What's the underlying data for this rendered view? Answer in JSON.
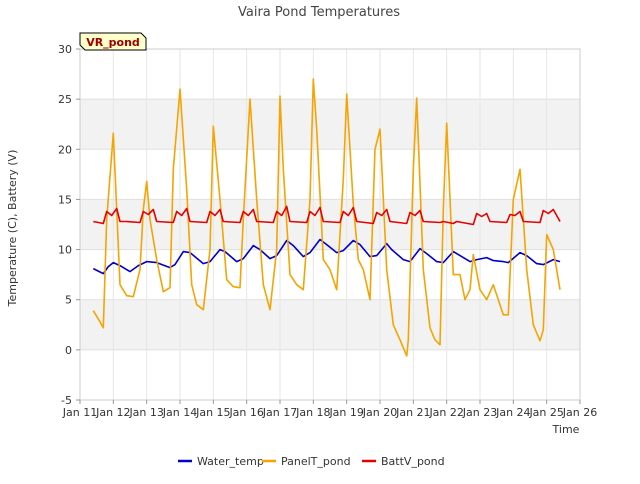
{
  "chart_data": {
    "type": "line",
    "title": "Vaira Pond Temperatures",
    "xlabel": "Time",
    "ylabel": "Temperature (C), Battery (V)",
    "site_badge": "VR_pond",
    "xlim": [
      "Jan 11",
      "Jan 26"
    ],
    "ylim": [
      -5,
      30
    ],
    "x_ticks": [
      "Jan 11",
      "Jan 12",
      "Jan 13",
      "Jan 14",
      "Jan 15",
      "Jan 16",
      "Jan 17",
      "Jan 18",
      "Jan 19",
      "Jan 20",
      "Jan 21",
      "Jan 22",
      "Jan 23",
      "Jan 24",
      "Jan 25",
      "Jan 26"
    ],
    "y_ticks": [
      -5,
      0,
      5,
      10,
      15,
      20,
      25,
      30
    ],
    "grid": true,
    "legend_position": "bottom",
    "series": [
      {
        "name": "Water_temp",
        "color": "#0000cc",
        "x": [
          11.4,
          11.7,
          11.85,
          12.0,
          12.2,
          12.5,
          12.75,
          13.0,
          13.3,
          13.7,
          13.85,
          14.1,
          14.3,
          14.7,
          14.9,
          15.2,
          15.35,
          15.7,
          15.9,
          16.2,
          16.4,
          16.7,
          16.9,
          17.2,
          17.4,
          17.7,
          17.9,
          18.2,
          18.4,
          18.7,
          18.9,
          19.2,
          19.4,
          19.7,
          19.9,
          20.2,
          20.35,
          20.7,
          20.9,
          21.2,
          21.4,
          21.7,
          21.9,
          22.2,
          22.4,
          22.7,
          22.9,
          23.2,
          23.4,
          23.7,
          23.85,
          24.2,
          24.4,
          24.7,
          24.9,
          25.2,
          25.4
        ],
        "values": [
          8.1,
          7.6,
          8.3,
          8.7,
          8.4,
          7.8,
          8.4,
          8.8,
          8.7,
          8.2,
          8.5,
          9.8,
          9.7,
          8.6,
          8.8,
          10.0,
          9.8,
          8.8,
          9.1,
          10.4,
          10.0,
          9.1,
          9.4,
          10.9,
          10.4,
          9.3,
          9.7,
          11.0,
          10.5,
          9.7,
          9.9,
          10.9,
          10.5,
          9.3,
          9.4,
          10.6,
          10.0,
          9.0,
          8.8,
          10.1,
          9.6,
          8.8,
          8.7,
          9.8,
          9.4,
          8.8,
          9.0,
          9.2,
          8.9,
          8.8,
          8.7,
          9.7,
          9.4,
          8.6,
          8.5,
          9.0,
          8.8
        ]
      },
      {
        "name": "PanelT_pond",
        "color": "#f5a400",
        "x": [
          11.4,
          11.6,
          11.7,
          11.8,
          12.0,
          12.1,
          12.2,
          12.4,
          12.6,
          12.8,
          12.9,
          13.0,
          13.1,
          13.3,
          13.5,
          13.7,
          13.8,
          14.0,
          14.2,
          14.35,
          14.5,
          14.7,
          14.9,
          15.0,
          15.2,
          15.4,
          15.6,
          15.8,
          15.9,
          16.1,
          16.3,
          16.5,
          16.7,
          16.9,
          17.0,
          17.1,
          17.3,
          17.5,
          17.7,
          17.9,
          18.0,
          18.1,
          18.3,
          18.5,
          18.7,
          18.9,
          19.0,
          19.1,
          19.2,
          19.35,
          19.5,
          19.7,
          19.85,
          20.0,
          20.2,
          20.4,
          20.6,
          20.8,
          20.85,
          21.0,
          21.1,
          21.3,
          21.5,
          21.65,
          21.8,
          21.9,
          22.0,
          22.2,
          22.4,
          22.55,
          22.7,
          22.8,
          23.0,
          23.2,
          23.4,
          23.7,
          23.85,
          24.0,
          24.2,
          24.4,
          24.6,
          24.8,
          24.9,
          25.0,
          25.2,
          25.4
        ],
        "values": [
          3.9,
          2.8,
          2.2,
          13.0,
          21.6,
          14.0,
          6.5,
          5.4,
          5.3,
          8.0,
          14.0,
          16.8,
          13.0,
          9.0,
          5.8,
          6.2,
          18.0,
          26.0,
          16.0,
          6.5,
          4.5,
          4.0,
          10.0,
          22.3,
          15.0,
          7.0,
          6.3,
          6.2,
          13.0,
          25.0,
          15.0,
          6.5,
          4.0,
          10.0,
          25.3,
          18.0,
          7.5,
          6.5,
          6.0,
          15.0,
          27.0,
          22.0,
          9.0,
          8.0,
          6.0,
          17.0,
          25.5,
          20.0,
          14.5,
          9.0,
          8.0,
          5.0,
          20.0,
          22.0,
          8.0,
          2.5,
          1.0,
          -0.6,
          1.0,
          18.0,
          25.1,
          8.0,
          2.2,
          1.0,
          0.5,
          14.0,
          22.6,
          7.5,
          7.5,
          5.0,
          6.0,
          9.5,
          6.0,
          5.0,
          6.5,
          3.5,
          3.5,
          15.0,
          18.0,
          8.0,
          2.5,
          0.9,
          2.0,
          11.5,
          10.0,
          6.0
        ]
      },
      {
        "name": "BattV_pond",
        "color": "#e60000",
        "x": [
          11.4,
          11.7,
          11.8,
          11.95,
          12.1,
          12.2,
          12.4,
          12.8,
          12.9,
          13.05,
          13.2,
          13.3,
          13.8,
          13.9,
          14.05,
          14.2,
          14.3,
          14.8,
          14.9,
          15.05,
          15.2,
          15.3,
          15.8,
          15.9,
          16.05,
          16.2,
          16.3,
          16.8,
          16.9,
          17.05,
          17.2,
          17.3,
          17.8,
          17.9,
          18.05,
          18.2,
          18.3,
          18.8,
          18.9,
          19.05,
          19.2,
          19.3,
          19.8,
          19.9,
          20.05,
          20.2,
          20.3,
          20.8,
          20.9,
          21.05,
          21.2,
          21.3,
          21.8,
          21.9,
          22.05,
          22.2,
          22.3,
          22.8,
          22.9,
          23.05,
          23.2,
          23.3,
          23.8,
          23.9,
          24.05,
          24.2,
          24.3,
          24.8,
          24.9,
          25.05,
          25.2,
          25.4
        ],
        "values": [
          12.8,
          12.6,
          13.8,
          13.4,
          14.1,
          12.8,
          12.8,
          12.7,
          13.8,
          13.5,
          14.0,
          12.8,
          12.7,
          13.8,
          13.4,
          14.1,
          12.8,
          12.7,
          13.8,
          13.4,
          14.0,
          12.8,
          12.7,
          13.8,
          13.4,
          14.0,
          12.8,
          12.7,
          13.8,
          13.4,
          14.3,
          12.8,
          12.7,
          13.8,
          13.4,
          14.2,
          12.8,
          12.7,
          13.8,
          13.4,
          14.2,
          12.8,
          12.6,
          13.7,
          13.4,
          14.0,
          12.8,
          12.6,
          13.7,
          13.4,
          13.9,
          12.8,
          12.7,
          12.8,
          12.7,
          12.6,
          12.8,
          12.5,
          13.6,
          13.3,
          13.6,
          12.8,
          12.7,
          13.5,
          13.4,
          13.8,
          12.8,
          12.7,
          13.9,
          13.6,
          14.0,
          12.8
        ]
      }
    ]
  }
}
